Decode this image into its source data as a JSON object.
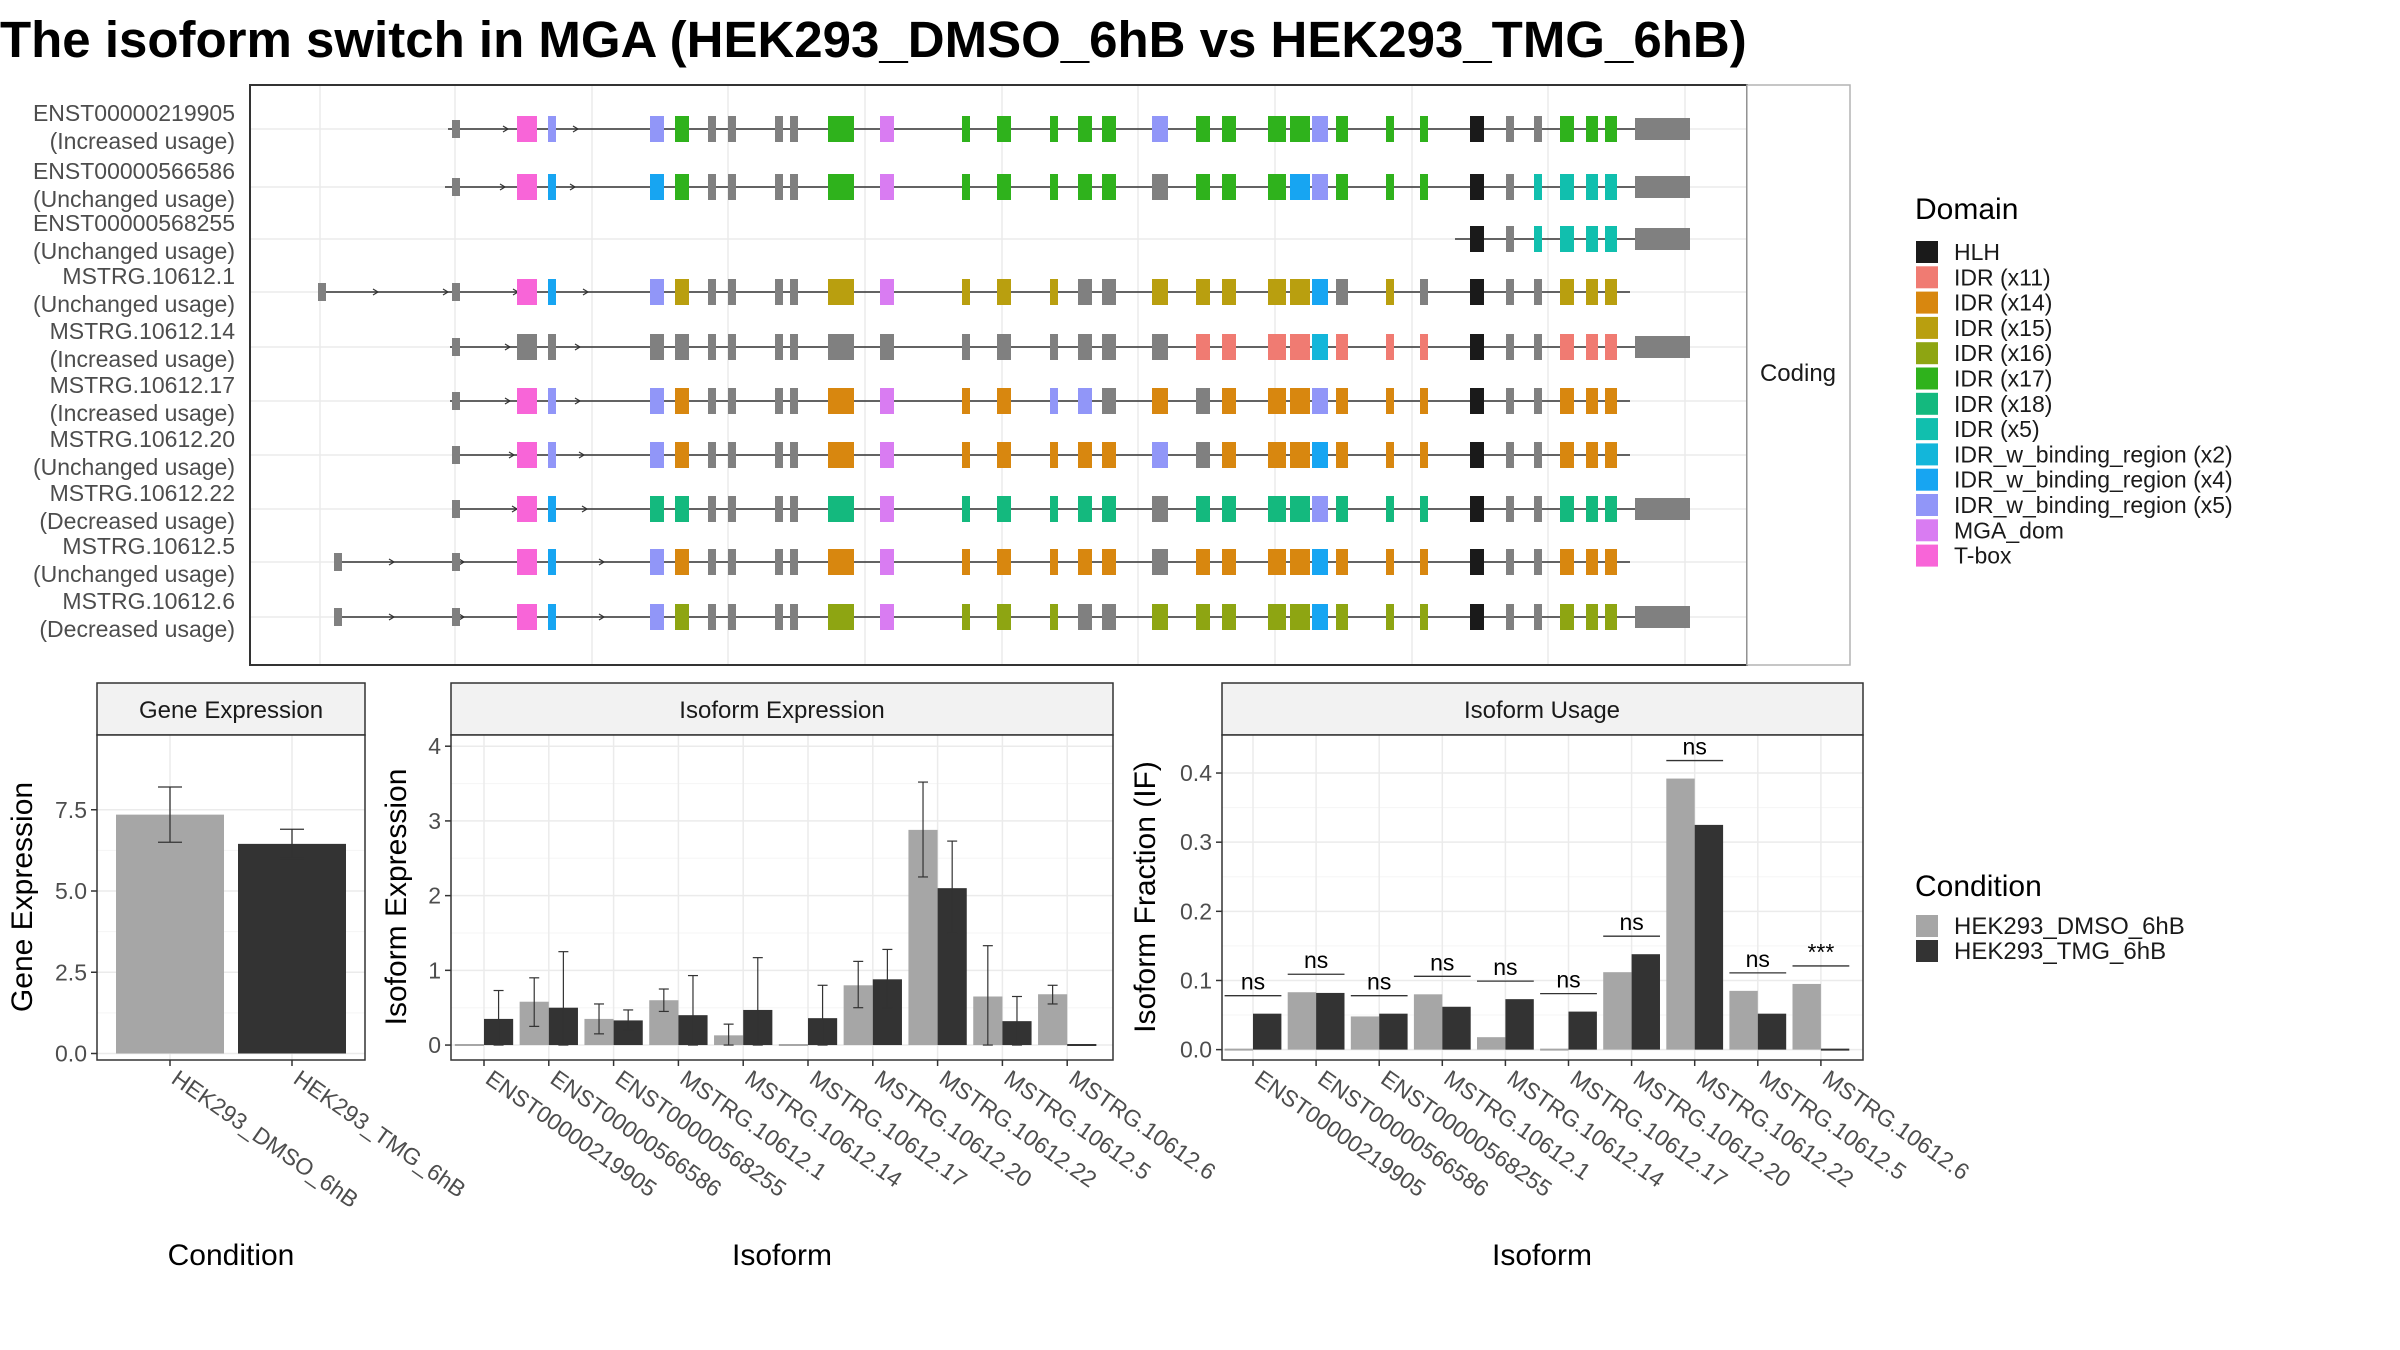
{
  "title": "The isoform switch in MGA (HEK293_DMSO_6hB vs HEK293_TMG_6hB)",
  "colors": {
    "dmso": "#a6a6a6",
    "tmg": "#333333",
    "domains": {
      "HLH": "#1a1a1a",
      "IDR (x11)": "#f07b72",
      "IDR (x14)": "#d8870f",
      "IDR (x15)": "#b99f0f",
      "IDR (x16)": "#8ea512",
      "IDR (x17)": "#2fb21c",
      "IDR (x18)": "#14b97e",
      "IDR (x5)": "#11bfae",
      "IDR_w_binding_region (x2)": "#13b6da",
      "IDR_w_binding_region (x4)": "#17a5f2",
      "IDR_w_binding_region (x5)": "#9196f8",
      "MGA_dom": "#d97cf2",
      "T-box": "#f865d8",
      "noncoding": "#808080"
    }
  },
  "transcripts": {
    "facet_label": "Coding",
    "rows": [
      {
        "id": "ENST00000219905",
        "status": "(Increased usage)"
      },
      {
        "id": "ENST00000566586",
        "status": "(Unchanged usage)"
      },
      {
        "id": "ENST00000568255",
        "status": "(Unchanged usage)"
      },
      {
        "id": "MSTRG.10612.1",
        "status": "(Unchanged usage)"
      },
      {
        "id": "MSTRG.10612.14",
        "status": "(Increased usage)"
      },
      {
        "id": "MSTRG.10612.17",
        "status": "(Increased usage)"
      },
      {
        "id": "MSTRG.10612.20",
        "status": "(Unchanged usage)"
      },
      {
        "id": "MSTRG.10612.22",
        "status": "(Decreased usage)"
      },
      {
        "id": "MSTRG.10612.5",
        "status": "(Unchanged usage)"
      },
      {
        "id": "MSTRG.10612.6",
        "status": "(Decreased usage)"
      }
    ]
  },
  "legend_domain": {
    "title": "Domain",
    "items": [
      "HLH",
      "IDR (x11)",
      "IDR (x14)",
      "IDR (x15)",
      "IDR (x16)",
      "IDR (x17)",
      "IDR (x18)",
      "IDR (x5)",
      "IDR_w_binding_region (x2)",
      "IDR_w_binding_region (x4)",
      "IDR_w_binding_region (x5)",
      "MGA_dom",
      "T-box"
    ]
  },
  "legend_condition": {
    "title": "Condition",
    "items": [
      "HEK293_DMSO_6hB",
      "HEK293_TMG_6hB"
    ]
  },
  "chart_data": [
    {
      "type": "bar",
      "title": "Gene Expression",
      "xlabel": "Condition",
      "ylabel": "Gene Expression",
      "categories": [
        "HEK293_DMSO_6hB",
        "HEK293_TMG_6hB"
      ],
      "values": [
        7.35,
        6.45
      ],
      "error_low": [
        6.5,
        6.0
      ],
      "error_high": [
        8.2,
        6.9
      ],
      "yticks": [
        0.0,
        2.5,
        5.0,
        7.5
      ],
      "ytick_labels": [
        "0.0",
        "2.5",
        "5.0",
        "7.5"
      ],
      "ylim": [
        -0.2,
        9.8
      ]
    },
    {
      "type": "bar",
      "title": "Isoform Expression",
      "xlabel": "Isoform",
      "ylabel": "Isoform Expression",
      "categories": [
        "ENST00000219905",
        "ENST00000566586",
        "ENST00000568255",
        "MSTRG.10612.1",
        "MSTRG.10612.14",
        "MSTRG.10612.17",
        "MSTRG.10612.20",
        "MSTRG.10612.22",
        "MSTRG.10612.5",
        "MSTRG.10612.6"
      ],
      "series": [
        {
          "name": "HEK293_DMSO_6hB",
          "values": [
            0.0,
            0.58,
            0.35,
            0.6,
            0.13,
            0.0,
            0.8,
            2.88,
            0.65,
            0.68
          ],
          "error_low": [
            0.0,
            0.25,
            0.15,
            0.45,
            0.0,
            0.0,
            0.5,
            2.25,
            0.0,
            0.55
          ],
          "error_high": [
            0.0,
            0.9,
            0.55,
            0.75,
            0.28,
            0.0,
            1.12,
            3.52,
            1.33,
            0.8
          ]
        },
        {
          "name": "HEK293_TMG_6hB",
          "values": [
            0.35,
            0.5,
            0.33,
            0.4,
            0.47,
            0.36,
            0.88,
            2.1,
            0.32,
            0.0
          ],
          "error_low": [
            0.0,
            0.0,
            0.2,
            0.0,
            0.0,
            0.0,
            0.5,
            1.5,
            0.0,
            0.0
          ],
          "error_high": [
            0.73,
            1.25,
            0.47,
            0.93,
            1.17,
            0.8,
            1.28,
            2.73,
            0.65,
            0.0
          ]
        }
      ],
      "yticks": [
        0,
        1,
        2,
        3,
        4
      ],
      "ytick_labels": [
        "0",
        "1",
        "2",
        "3",
        "4"
      ],
      "ylim": [
        -0.2,
        4.15
      ]
    },
    {
      "type": "bar",
      "title": "Isoform Usage",
      "xlabel": "Isoform",
      "ylabel": "Isoform Fraction (IF)",
      "categories": [
        "ENST00000219905",
        "ENST00000566586",
        "ENST00000568255",
        "MSTRG.10612.1",
        "MSTRG.10612.14",
        "MSTRG.10612.17",
        "MSTRG.10612.20",
        "MSTRG.10612.22",
        "MSTRG.10612.5",
        "MSTRG.10612.6"
      ],
      "series": [
        {
          "name": "HEK293_DMSO_6hB",
          "values": [
            0.0,
            0.083,
            0.048,
            0.08,
            0.018,
            0.0,
            0.112,
            0.392,
            0.085,
            0.095
          ]
        },
        {
          "name": "HEK293_TMG_6hB",
          "values": [
            0.052,
            0.082,
            0.052,
            0.062,
            0.073,
            0.055,
            0.138,
            0.325,
            0.052,
            0.0
          ]
        }
      ],
      "significance": [
        "ns",
        "ns",
        "ns",
        "ns",
        "ns",
        "ns",
        "ns",
        "ns",
        "ns",
        "***"
      ],
      "yticks": [
        0.0,
        0.1,
        0.2,
        0.3,
        0.4
      ],
      "ytick_labels": [
        "0.0",
        "0.1",
        "0.2",
        "0.3",
        "0.4"
      ],
      "ylim": [
        -0.015,
        0.455
      ]
    }
  ]
}
